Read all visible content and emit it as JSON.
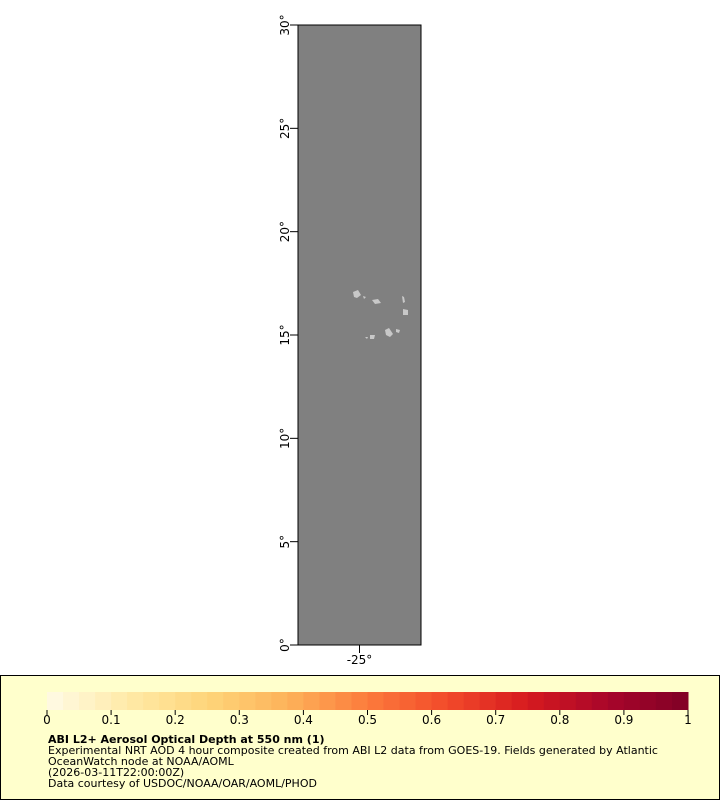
{
  "map": {
    "xlim": [
      -28,
      -22
    ],
    "ylim": [
      0,
      30
    ],
    "xticks": [
      {
        "value": -25,
        "label": "-25°"
      }
    ],
    "yticks": [
      {
        "value": 0,
        "label": "0°"
      },
      {
        "value": 5,
        "label": "5°"
      },
      {
        "value": 10,
        "label": "10°"
      },
      {
        "value": 15,
        "label": "15°"
      },
      {
        "value": 20,
        "label": "20°"
      },
      {
        "value": 25,
        "label": "25°"
      },
      {
        "value": 30,
        "label": "30°"
      }
    ],
    "background_color": "#808080",
    "land_color": "#c8c8c8"
  },
  "legend": {
    "title": "ABI L2+ Aerosol Optical Depth at 550 nm (1)",
    "lines": [
      "Experimental NRT AOD 4 hour composite created from ABI L2 data from GOES-19. Fields generated by Atlantic",
      "OceanWatch node at NOAA/AOML",
      "(2026-03-11T22:00:00Z)",
      "Data courtesy of USDOC/NOAA/OAR/AOML/PHOD"
    ],
    "colorbar": {
      "range": [
        0,
        1
      ],
      "ticks": [
        0,
        0.1,
        0.2,
        0.3,
        0.4,
        0.5,
        0.6,
        0.7,
        0.8,
        0.9,
        1
      ],
      "colors": [
        "#fffbe6",
        "#ffeaa8",
        "#fed57a",
        "#fdb35a",
        "#fc7b3c",
        "#f24a2a",
        "#d61a1f",
        "#a8062a",
        "#800026"
      ]
    }
  }
}
